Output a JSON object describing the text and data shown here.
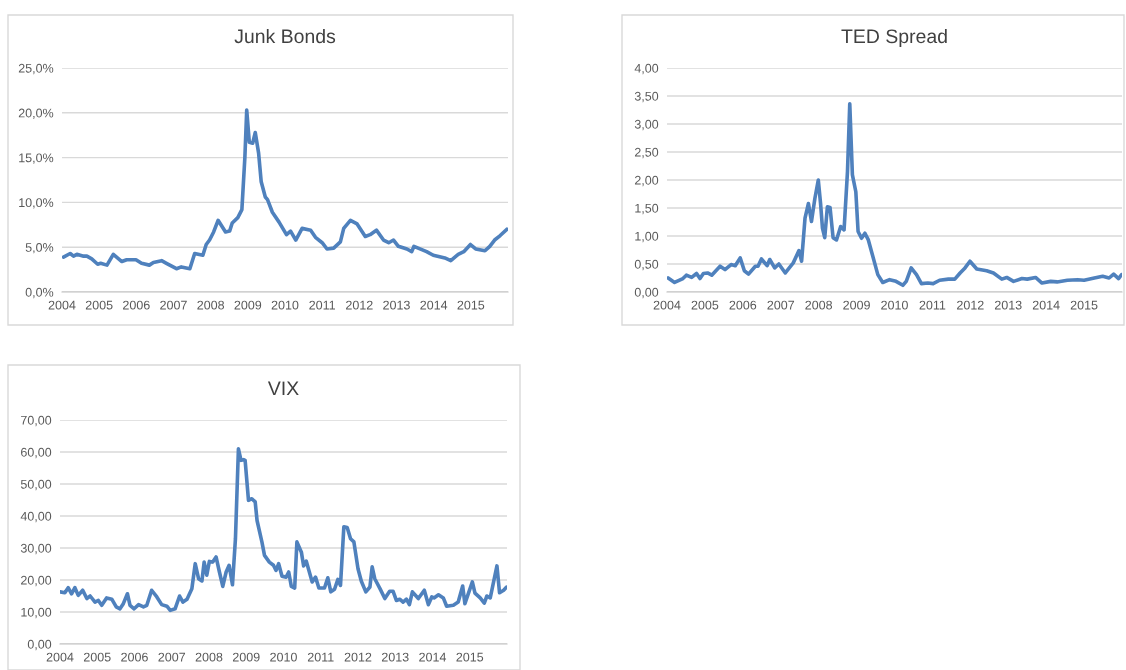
{
  "chart_data": [
    {
      "type": "line",
      "title": "Junk Bonds",
      "grid": "y",
      "x": [
        2004.04,
        2004.22,
        2004.31,
        2004.4,
        2004.58,
        2004.67,
        2004.8,
        2004.96,
        2005.04,
        2005.21,
        2005.38,
        2005.61,
        2005.74,
        2005.99,
        2006.14,
        2006.35,
        2006.46,
        2006.68,
        2006.81,
        2007.08,
        2007.21,
        2007.44,
        2007.57,
        2007.79,
        2007.88,
        2007.97,
        2008.08,
        2008.2,
        2008.4,
        2008.51,
        2008.58,
        2008.73,
        2008.84,
        2008.92,
        2008.97,
        2009.04,
        2009.13,
        2009.2,
        2009.29,
        2009.36,
        2009.47,
        2009.53,
        2009.66,
        2009.84,
        2010.04,
        2010.15,
        2010.29,
        2010.46,
        2010.69,
        2010.82,
        2011.0,
        2011.13,
        2011.31,
        2011.49,
        2011.58,
        2011.76,
        2011.94,
        2012.16,
        2012.29,
        2012.46,
        2012.65,
        2012.79,
        2012.92,
        2013.05,
        2013.28,
        2013.41,
        2013.47,
        2013.81,
        2013.99,
        2014.3,
        2014.46,
        2014.66,
        2014.81,
        2014.99,
        2015.13,
        2015.38,
        2015.51,
        2015.64,
        2015.79,
        2015.97
      ],
      "series": [
        {
          "color": "#4f81bd",
          "values": [
            3.9,
            4.3,
            4.0,
            4.2,
            4.0,
            4.0,
            3.7,
            3.1,
            3.2,
            3.0,
            4.2,
            3.4,
            3.6,
            3.6,
            3.2,
            3.0,
            3.3,
            3.5,
            3.2,
            2.6,
            2.8,
            2.6,
            4.3,
            4.1,
            5.3,
            5.8,
            6.7,
            8.0,
            6.7,
            6.8,
            7.7,
            8.3,
            9.2,
            15.0,
            20.3,
            16.7,
            16.6,
            17.8,
            15.5,
            12.3,
            10.6,
            10.3,
            8.9,
            7.8,
            6.4,
            6.8,
            5.8,
            7.1,
            6.9,
            6.1,
            5.5,
            4.8,
            4.9,
            5.6,
            7.1,
            8.0,
            7.6,
            6.2,
            6.4,
            6.9,
            5.8,
            5.5,
            5.8,
            5.1,
            4.8,
            4.5,
            5.1,
            4.5,
            4.1,
            3.8,
            3.5,
            4.2,
            4.5,
            5.3,
            4.8,
            4.6,
            5.1,
            5.8,
            6.3,
            7.0
          ]
        }
      ],
      "xlim": [
        2004,
        2016
      ],
      "xticks": [
        2004,
        2005,
        2006,
        2007,
        2008,
        2009,
        2010,
        2011,
        2012,
        2013,
        2014,
        2015
      ],
      "ylim": [
        0,
        25
      ],
      "yticks": [
        {
          "value": 0,
          "label": "0,0%"
        },
        {
          "value": 5,
          "label": "5,0%"
        },
        {
          "value": 10,
          "label": "10,0%"
        },
        {
          "value": 15,
          "label": "15,0%"
        },
        {
          "value": 20,
          "label": "20,0%"
        },
        {
          "value": 25,
          "label": "25,0%"
        }
      ]
    },
    {
      "type": "line",
      "title": "TED Spread",
      "grid": "y",
      "x": [
        2004.03,
        2004.2,
        2004.42,
        2004.51,
        2004.65,
        2004.78,
        2004.87,
        2004.96,
        2005.07,
        2005.18,
        2005.4,
        2005.53,
        2005.69,
        2005.8,
        2005.93,
        2006.04,
        2006.15,
        2006.33,
        2006.4,
        2006.49,
        2006.64,
        2006.71,
        2006.84,
        2006.95,
        2007.12,
        2007.33,
        2007.48,
        2007.55,
        2007.64,
        2007.73,
        2007.81,
        2007.9,
        2007.99,
        2008.05,
        2008.1,
        2008.16,
        2008.23,
        2008.3,
        2008.38,
        2008.47,
        2008.58,
        2008.67,
        2008.76,
        2008.82,
        2008.89,
        2008.98,
        2009.04,
        2009.13,
        2009.22,
        2009.31,
        2009.56,
        2009.69,
        2009.87,
        2010.04,
        2010.22,
        2010.31,
        2010.44,
        2010.58,
        2010.71,
        2010.88,
        2011.02,
        2011.19,
        2011.42,
        2011.59,
        2011.73,
        2011.86,
        2011.99,
        2012.17,
        2012.43,
        2012.61,
        2012.83,
        2012.96,
        2013.14,
        2013.36,
        2013.5,
        2013.72,
        2013.89,
        2014.12,
        2014.29,
        2014.56,
        2014.83,
        2015.0,
        2015.27,
        2015.49,
        2015.66,
        2015.78,
        2015.91,
        2015.99
      ],
      "series": [
        {
          "color": "#4f81bd",
          "values": [
            0.25,
            0.17,
            0.24,
            0.3,
            0.26,
            0.33,
            0.24,
            0.33,
            0.34,
            0.3,
            0.46,
            0.4,
            0.49,
            0.47,
            0.61,
            0.38,
            0.32,
            0.46,
            0.46,
            0.59,
            0.47,
            0.58,
            0.43,
            0.5,
            0.34,
            0.52,
            0.74,
            0.55,
            1.32,
            1.58,
            1.26,
            1.67,
            2.0,
            1.58,
            1.14,
            0.97,
            1.52,
            1.51,
            0.97,
            0.93,
            1.17,
            1.11,
            2.15,
            3.36,
            2.09,
            1.79,
            1.08,
            0.96,
            1.05,
            0.93,
            0.31,
            0.17,
            0.22,
            0.19,
            0.12,
            0.19,
            0.43,
            0.31,
            0.15,
            0.16,
            0.15,
            0.21,
            0.23,
            0.23,
            0.34,
            0.43,
            0.55,
            0.41,
            0.38,
            0.34,
            0.23,
            0.26,
            0.19,
            0.24,
            0.23,
            0.26,
            0.16,
            0.19,
            0.18,
            0.21,
            0.22,
            0.21,
            0.25,
            0.28,
            0.25,
            0.32,
            0.24,
            0.31
          ]
        }
      ],
      "xlim": [
        2004,
        2016
      ],
      "xticks": [
        2004,
        2005,
        2006,
        2007,
        2008,
        2009,
        2010,
        2011,
        2012,
        2013,
        2014,
        2015
      ],
      "ylim": [
        0,
        4
      ],
      "yticks": [
        {
          "value": 0,
          "label": "0,00"
        },
        {
          "value": 0.5,
          "label": "0,50"
        },
        {
          "value": 1,
          "label": "1,00"
        },
        {
          "value": 1.5,
          "label": "1,50"
        },
        {
          "value": 2,
          "label": "2,00"
        },
        {
          "value": 2.5,
          "label": "2,50"
        },
        {
          "value": 3,
          "label": "3,00"
        },
        {
          "value": 3.5,
          "label": "3,50"
        },
        {
          "value": 4,
          "label": "4,00"
        }
      ]
    },
    {
      "type": "line",
      "title": "VIX",
      "grid": "y",
      "x": [
        2004.0,
        2004.13,
        2004.22,
        2004.31,
        2004.4,
        2004.49,
        2004.61,
        2004.72,
        2004.81,
        2004.94,
        2005.03,
        2005.12,
        2005.25,
        2005.39,
        2005.51,
        2005.61,
        2005.7,
        2005.81,
        2005.88,
        2005.99,
        2006.11,
        2006.24,
        2006.33,
        2006.46,
        2006.6,
        2006.73,
        2006.87,
        2006.96,
        2007.09,
        2007.21,
        2007.3,
        2007.41,
        2007.54,
        2007.63,
        2007.72,
        2007.81,
        2007.87,
        2007.94,
        2008.01,
        2008.1,
        2008.19,
        2008.28,
        2008.37,
        2008.46,
        2008.54,
        2008.63,
        2008.71,
        2008.79,
        2008.86,
        2008.93,
        2008.97,
        2009.06,
        2009.15,
        2009.24,
        2009.29,
        2009.42,
        2009.49,
        2009.62,
        2009.73,
        2009.8,
        2009.87,
        2009.96,
        2010.07,
        2010.14,
        2010.21,
        2010.3,
        2010.36,
        2010.48,
        2010.54,
        2010.61,
        2010.77,
        2010.86,
        2010.95,
        2011.1,
        2011.19,
        2011.27,
        2011.37,
        2011.46,
        2011.53,
        2011.62,
        2011.71,
        2011.8,
        2011.89,
        2012.0,
        2012.09,
        2012.21,
        2012.32,
        2012.38,
        2012.45,
        2012.59,
        2012.72,
        2012.85,
        2012.94,
        2013.03,
        2013.12,
        2013.21,
        2013.3,
        2013.38,
        2013.46,
        2013.62,
        2013.78,
        2013.89,
        2013.98,
        2014.04,
        2014.16,
        2014.29,
        2014.38,
        2014.56,
        2014.69,
        2014.81,
        2014.87,
        2015.07,
        2015.14,
        2015.28,
        2015.39,
        2015.46,
        2015.55,
        2015.73,
        2015.8,
        2015.91,
        2015.99
      ],
      "series": [
        {
          "color": "#4f81bd",
          "values": [
            16.3,
            16.0,
            17.6,
            15.7,
            17.6,
            15.2,
            16.8,
            14.2,
            15.0,
            13.1,
            13.6,
            12.1,
            14.4,
            14.0,
            11.6,
            11.0,
            12.6,
            15.7,
            12.1,
            11.0,
            12.3,
            11.6,
            12.1,
            16.8,
            14.7,
            12.3,
            11.8,
            10.5,
            11.0,
            15.0,
            13.1,
            14.0,
            17.3,
            25.1,
            20.4,
            19.7,
            25.6,
            21.5,
            25.8,
            25.6,
            27.2,
            22.5,
            18.0,
            22.5,
            24.6,
            18.5,
            32.9,
            61.0,
            57.4,
            57.6,
            57.4,
            44.9,
            45.4,
            44.4,
            38.6,
            31.9,
            27.7,
            25.6,
            24.6,
            23.0,
            25.1,
            21.2,
            20.9,
            22.5,
            18.0,
            17.5,
            31.9,
            28.7,
            24.4,
            25.9,
            19.4,
            20.9,
            17.5,
            17.5,
            20.7,
            16.3,
            17.1,
            20.2,
            18.3,
            36.6,
            36.4,
            32.9,
            31.9,
            23.5,
            19.6,
            16.3,
            17.8,
            24.1,
            20.4,
            17.3,
            14.2,
            16.5,
            16.5,
            13.6,
            14.0,
            13.1,
            14.0,
            12.3,
            16.3,
            14.2,
            16.8,
            12.3,
            14.7,
            14.4,
            15.4,
            14.4,
            11.8,
            12.1,
            13.1,
            18.1,
            12.6,
            19.4,
            15.9,
            14.4,
            12.8,
            15.0,
            14.4,
            24.4,
            16.0,
            16.8,
            17.8
          ]
        }
      ],
      "xlim": [
        2004,
        2016
      ],
      "xticks": [
        2004,
        2005,
        2006,
        2007,
        2008,
        2009,
        2010,
        2011,
        2012,
        2013,
        2014,
        2015
      ],
      "ylim": [
        0,
        70
      ],
      "yticks": [
        {
          "value": 0,
          "label": "0,00"
        },
        {
          "value": 10,
          "label": "10,00"
        },
        {
          "value": 20,
          "label": "20,00"
        },
        {
          "value": 30,
          "label": "30,00"
        },
        {
          "value": 40,
          "label": "40,00"
        },
        {
          "value": 50,
          "label": "50,00"
        },
        {
          "value": 60,
          "label": "60,00"
        },
        {
          "value": 70,
          "label": "70,00"
        }
      ]
    }
  ]
}
